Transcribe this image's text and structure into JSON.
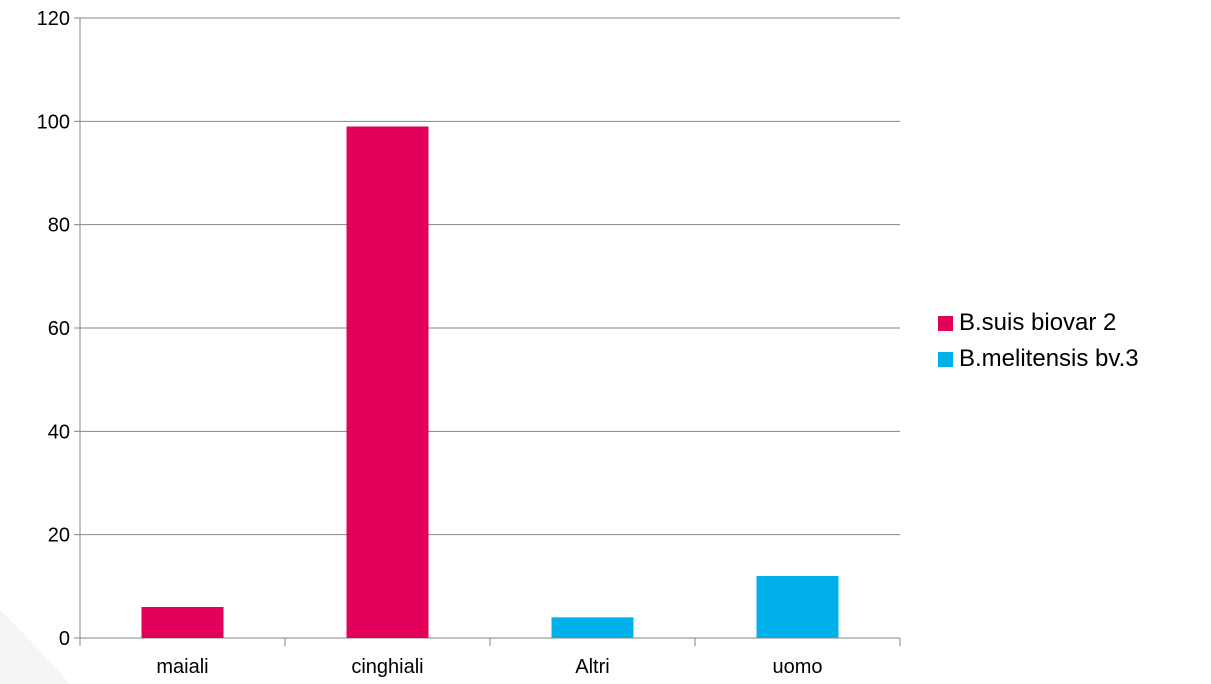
{
  "chart_data": {
    "type": "bar",
    "categories": [
      "maiali",
      "cinghiali",
      "Altri",
      "uomo"
    ],
    "series": [
      {
        "name": "B.suis biovar 2",
        "color": "#E2005A",
        "values": [
          6,
          99,
          null,
          null
        ]
      },
      {
        "name": "B.melitensis bv.3",
        "color": "#00B0EB",
        "values": [
          null,
          null,
          4,
          12
        ]
      }
    ],
    "y_ticks": [
      "0",
      "20",
      "40",
      "60",
      "80",
      "100",
      "120"
    ],
    "ylim": [
      0,
      120
    ],
    "grid": true,
    "legend_position": "right",
    "title": "",
    "xlabel": "",
    "ylabel": ""
  }
}
